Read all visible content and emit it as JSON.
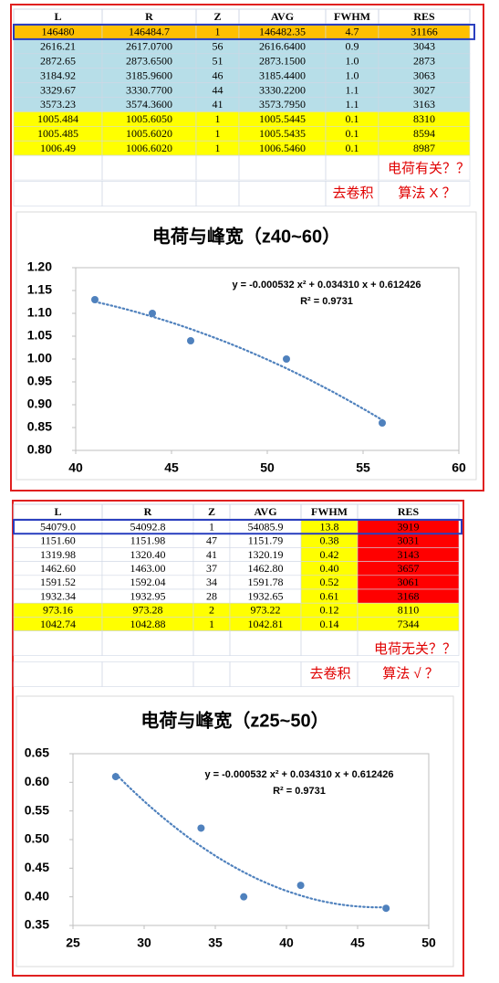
{
  "tables": [
    {
      "header": [
        "L",
        "R",
        "Z",
        "AVG",
        "FWHM",
        "RES"
      ],
      "rows": [
        [
          "146480",
          "146484.7",
          "1",
          "146482.35",
          "4.7",
          "31166"
        ],
        [
          "2616.21",
          "2617.0700",
          "56",
          "2616.6400",
          "0.9",
          "3043"
        ],
        [
          "2872.65",
          "2873.6500",
          "51",
          "2873.1500",
          "1.0",
          "2873"
        ],
        [
          "3184.92",
          "3185.9600",
          "46",
          "3185.4400",
          "1.0",
          "3063"
        ],
        [
          "3329.67",
          "3330.7700",
          "44",
          "3330.2200",
          "1.1",
          "3027"
        ],
        [
          "3573.23",
          "3574.3600",
          "41",
          "3573.7950",
          "1.1",
          "3163"
        ],
        [
          "1005.484",
          "1005.6050",
          "1",
          "1005.5445",
          "0.1",
          "8310"
        ],
        [
          "1005.485",
          "1005.6020",
          "1",
          "1005.5435",
          "0.1",
          "8594"
        ],
        [
          "1006.49",
          "1006.6020",
          "1",
          "1006.5460",
          "0.1",
          "8987"
        ]
      ],
      "notes": [
        "电荷有关？？",
        "去卷积",
        "算法 X ？"
      ]
    },
    {
      "header": [
        "L",
        "R",
        "Z",
        "AVG",
        "FWHM",
        "RES"
      ],
      "rows": [
        [
          "54079.0",
          "54092.8",
          "1",
          "54085.9",
          "13.8",
          "3919"
        ],
        [
          "1151.60",
          "1151.98",
          "47",
          "1151.79",
          "0.38",
          "3031"
        ],
        [
          "1319.98",
          "1320.40",
          "41",
          "1320.19",
          "0.42",
          "3143"
        ],
        [
          "1462.60",
          "1463.00",
          "37",
          "1462.80",
          "0.40",
          "3657"
        ],
        [
          "1591.52",
          "1592.04",
          "34",
          "1591.78",
          "0.52",
          "3061"
        ],
        [
          "1932.34",
          "1932.95",
          "28",
          "1932.65",
          "0.61",
          "3168"
        ],
        [
          "973.16",
          "973.28",
          "2",
          "973.22",
          "0.12",
          "8110"
        ],
        [
          "1042.74",
          "1042.88",
          "1",
          "1042.81",
          "0.14",
          "7344"
        ]
      ],
      "notes": [
        "电荷无关？？",
        "去卷积",
        "算法 √ ？"
      ]
    }
  ],
  "chart_data": [
    {
      "type": "scatter",
      "title": "电荷与峰宽（z40~60）",
      "x": [
        41,
        44,
        46,
        51,
        56
      ],
      "values": [
        1.13,
        1.1,
        1.04,
        1.0,
        0.86
      ],
      "color": "#4f81bd",
      "trendline": "polynomial",
      "equation": "y = -0.000532  x² + 0.034310  x + 0.612426",
      "r_squared": "R² = 0.9731",
      "xlim": [
        40,
        60
      ],
      "xticks": [
        40,
        45,
        50,
        55,
        60
      ],
      "ylim": [
        0.8,
        1.2
      ],
      "yticks": [
        {
          "value": 0.8,
          "label": "0.80"
        },
        0.85,
        {
          "value": 0.9,
          "label": "0.90"
        },
        0.95,
        {
          "value": 1.0,
          "label": "1.00"
        },
        1.05,
        {
          "value": 1.1,
          "label": "1.10"
        },
        1.15,
        {
          "value": 1.2,
          "label": "1.20"
        }
      ]
    },
    {
      "type": "scatter",
      "title": "电荷与峰宽（z25~50）",
      "x": [
        28,
        34,
        37,
        41,
        47
      ],
      "values": [
        0.61,
        0.52,
        0.4,
        0.42,
        0.38
      ],
      "color": "#4f81bd",
      "trendline": "polynomial",
      "equation": "y = -0.000532  x² + 0.034310  x + 0.612426",
      "r_squared": "R² = 0.9731",
      "xlim": [
        25,
        50
      ],
      "xticks": [
        25,
        30,
        35,
        40,
        45,
        50
      ],
      "ylim": [
        0.35,
        0.65
      ],
      "yticks": [
        0.35,
        {
          "value": 0.4,
          "label": "0.40"
        },
        0.45,
        {
          "value": 0.5,
          "label": "0.50"
        },
        0.55,
        {
          "value": 0.6,
          "label": "0.60"
        },
        0.65
      ]
    }
  ]
}
